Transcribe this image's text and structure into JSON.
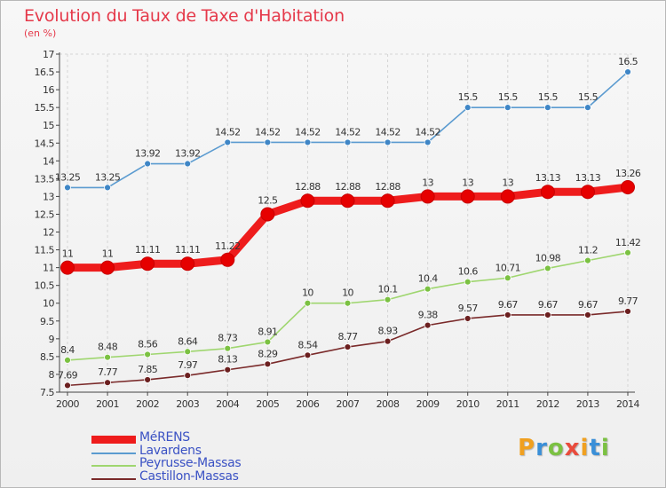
{
  "brand": {
    "logo_letters": [
      "P",
      "r",
      "o",
      "x",
      "i",
      "t",
      "i"
    ],
    "logo_colors": [
      "#f0a020",
      "#3a8fd8",
      "#7bc142",
      "#e94b3c",
      "#f0a020",
      "#3a8fd8",
      "#7bc142"
    ]
  },
  "chart_data": {
    "type": "line",
    "title": "Evolution du Taux de Taxe d'Habitation",
    "subtitle": "(en %)",
    "xlabel": "",
    "ylabel": "",
    "x": [
      "2000",
      "2001",
      "2002",
      "2003",
      "2004",
      "2005",
      "2006",
      "2007",
      "2008",
      "2009",
      "2010",
      "2011",
      "2012",
      "2013",
      "2014"
    ],
    "ylim": [
      7.5,
      17
    ],
    "y_ticks": [
      "7.5",
      "8",
      "8.5",
      "9",
      "9.5",
      "10",
      "10.5",
      "11",
      "11.5",
      "12",
      "12.5",
      "13",
      "13.5",
      "14",
      "14.5",
      "15",
      "15.5",
      "16",
      "16.5",
      "17"
    ],
    "grid": "vertical dashed",
    "legend_position": "bottom-left",
    "series": [
      {
        "name": "Lavardens",
        "color": "#5b9bd0",
        "marker_color": "#3f86c6",
        "values": [
          13.25,
          13.25,
          13.92,
          13.92,
          14.52,
          14.52,
          14.52,
          14.52,
          14.52,
          14.52,
          15.5,
          15.5,
          15.5,
          15.5,
          16.5
        ],
        "labels": [
          "13.25",
          "13.25",
          "13.92",
          "13.92",
          "14.52",
          "14.52",
          "14.52",
          "14.52",
          "14.52",
          "14.52",
          "15.5",
          "15.5",
          "15.5",
          "15.5",
          "16.5"
        ]
      },
      {
        "name": "Peyrusse-Massas",
        "color": "#9fd66f",
        "marker_color": "#7bc142",
        "values": [
          8.4,
          8.48,
          8.56,
          8.64,
          8.73,
          8.91,
          10,
          10,
          10.1,
          10.4,
          10.6,
          10.71,
          10.98,
          11.2,
          11.42
        ],
        "labels": [
          "8.4",
          "8.48",
          "8.56",
          "8.64",
          "8.73",
          "8.91",
          "10",
          "10",
          "10.1",
          "10.4",
          "10.6",
          "10.71",
          "10.98",
          "11.2",
          "11.42"
        ]
      },
      {
        "name": "Castillon-Massas",
        "color": "#7a2a2a",
        "marker_color": "#6b1f1f",
        "values": [
          7.69,
          7.77,
          7.85,
          7.97,
          8.13,
          8.29,
          8.54,
          8.77,
          8.93,
          9.38,
          9.57,
          9.67,
          9.67,
          9.67,
          9.77
        ],
        "labels": [
          "7.69",
          "7.77",
          "7.85",
          "7.97",
          "8.13",
          "8.29",
          "8.54",
          "8.77",
          "8.93",
          "9.38",
          "9.57",
          "9.67",
          "9.67",
          "9.67",
          "9.77"
        ]
      },
      {
        "name": "MéRENS",
        "color": "#ee1c1c",
        "marker_color": "#e60000",
        "values": [
          11,
          11,
          11.11,
          11.11,
          11.22,
          12.5,
          12.88,
          12.88,
          12.88,
          13,
          13,
          13,
          13.13,
          13.13,
          13.26
        ],
        "labels": [
          "11",
          "11",
          "11.11",
          "11.11",
          "11.22",
          "12.5",
          "12.88",
          "12.88",
          "12.88",
          "13",
          "13",
          "13",
          "13.13",
          "13.13",
          "13.26"
        ]
      }
    ],
    "legend_order": [
      "MéRENS",
      "Lavardens",
      "Peyrusse-Massas",
      "Castillon-Massas"
    ]
  }
}
